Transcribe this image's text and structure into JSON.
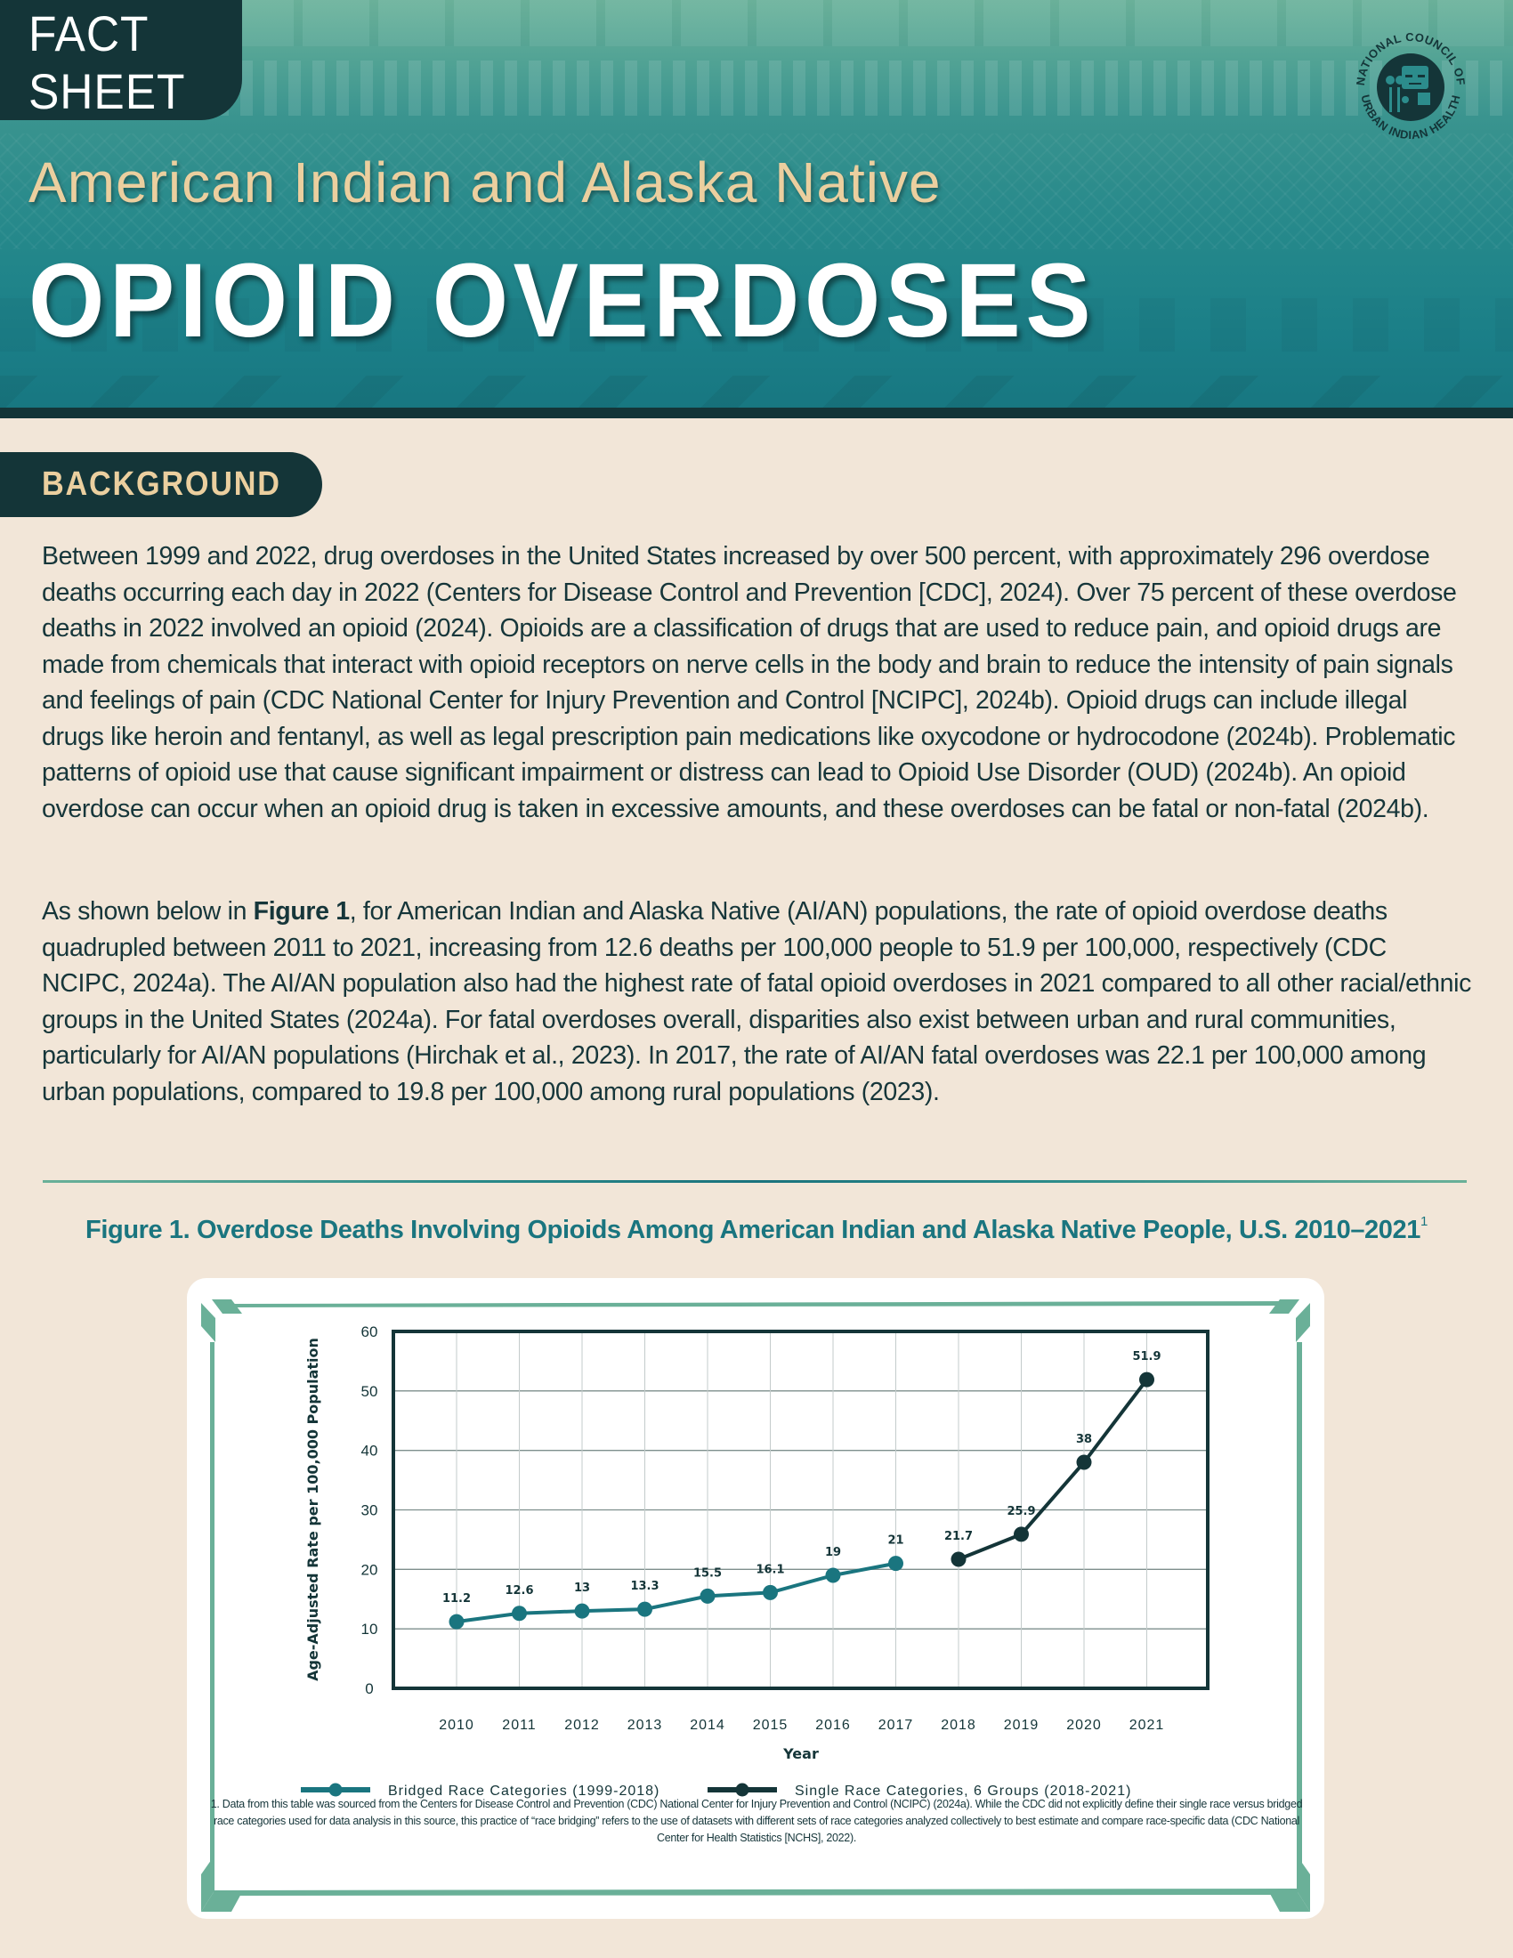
{
  "header": {
    "tab_label": "FACT SHEET",
    "subtitle": "American Indian and Alaska Native",
    "title": "OPIOID OVERDOSES",
    "logo": {
      "icon": "ncuih-logo-icon",
      "text_top": "NATIONAL COUNCIL OF",
      "text_bottom": "URBAN INDIAN HEALTH"
    },
    "colors": {
      "band_top": "#6cb39c",
      "band_bottom": "#177680",
      "dark": "#143538",
      "subtitle": "#ebcf9f",
      "title": "#ffffff"
    }
  },
  "background": {
    "heading": "BACKGROUND",
    "paragraph_1": "Between 1999 and 2022, drug overdoses in the United States increased by over 500 percent, with approximately 296 overdose deaths occurring each day in 2022 (Centers for Disease Control and Prevention [CDC], 2024). Over 75 percent of these overdose deaths in 2022 involved an opioid (2024). Opioids are a classification of drugs that are used to reduce pain, and opioid drugs are made from chemicals that interact with opioid receptors on nerve cells in the body and brain to reduce the intensity of pain signals and feelings of pain (CDC National Center for Injury Prevention and Control [NCIPC], 2024b). Opioid drugs can include illegal drugs like heroin and fentanyl, as well as legal prescription pain medications like oxycodone or hydrocodone (2024b). Problematic patterns of opioid use that cause significant impairment or distress can lead to Opioid Use Disorder (OUD) (2024b). An opioid overdose can occur when an opioid drug is taken in excessive amounts, and these overdoses can be fatal or non-fatal (2024b).",
    "paragraph_2_prefix": "As shown below in ",
    "paragraph_2_bold": "Figure 1",
    "paragraph_2_rest": ", for American Indian and Alaska Native (AI/AN) populations, the rate of opioid overdose deaths quadrupled between 2011 to 2021, increasing from 12.6 deaths per 100,000 people to 51.9 per 100,000, respectively (CDC NCIPC, 2024a). The AI/AN population also had the highest rate of fatal opioid overdoses in 2021 compared to all other racial/ethnic groups in the United States (2024a). For fatal overdoses overall, disparities also exist between urban and rural communities, particularly for AI/AN populations (Hirchak et al., 2023). In 2017, the rate of AI/AN fatal overdoses was 22.1 per 100,000 among urban populations, compared to 19.8 per 100,000 among rural populations (2023)."
  },
  "figure": {
    "title": "Figure 1. Overdose Deaths Involving Opioids Among American Indian and Alaska Native People, U.S. 2010–2021",
    "title_footnote_marker": "1",
    "footnote": "1.  Data from this table was sourced from the Centers for Disease Control and Prevention (CDC) National Center for Injury Prevention and Control (NCIPC) (2024a). While the CDC did not explicitly define their single race versus bridged race categories used for data analysis in this source, this practice of “race bridging” refers to the use of datasets with different sets of race categories analyzed collectively to best estimate and compare race-specific data (CDC National Center for Health Statistics [NCHS], 2022).",
    "frame_color": "#6ab098"
  },
  "chart_data": {
    "type": "line",
    "title": "Overdose Deaths Involving Opioids Among American Indian and Alaska Native People, U.S. 2010–2021",
    "xlabel": "Year",
    "ylabel": "Age-Adjusted Rate per 100,000 Population",
    "ylim": [
      0,
      60
    ],
    "yticks": [
      0,
      10,
      20,
      30,
      40,
      50,
      60
    ],
    "grid": true,
    "legend_position": "bottom",
    "categories": [
      "2010",
      "2011",
      "2012",
      "2013",
      "2014",
      "2015",
      "2016",
      "2017",
      "2018",
      "2019",
      "2020",
      "2021"
    ],
    "series": [
      {
        "name": "Bridged Race Categories (1999-2018)",
        "color": "#1a757f",
        "x": [
          "2010",
          "2011",
          "2012",
          "2013",
          "2014",
          "2015",
          "2016",
          "2017"
        ],
        "values": [
          11.2,
          12.6,
          13,
          13.3,
          15.5,
          16.1,
          19,
          21
        ],
        "labels": [
          "11.2",
          "12.6",
          "13",
          "13.3",
          "15.5",
          "16.1",
          "19",
          "21"
        ]
      },
      {
        "name": "Single Race Categories, 6 Groups (2018-2021)",
        "color": "#143538",
        "x": [
          "2018",
          "2019",
          "2020",
          "2021"
        ],
        "values": [
          21.7,
          25.9,
          38,
          51.9
        ],
        "labels": [
          "21.7",
          "25.9",
          "38",
          "51.9"
        ]
      }
    ]
  }
}
